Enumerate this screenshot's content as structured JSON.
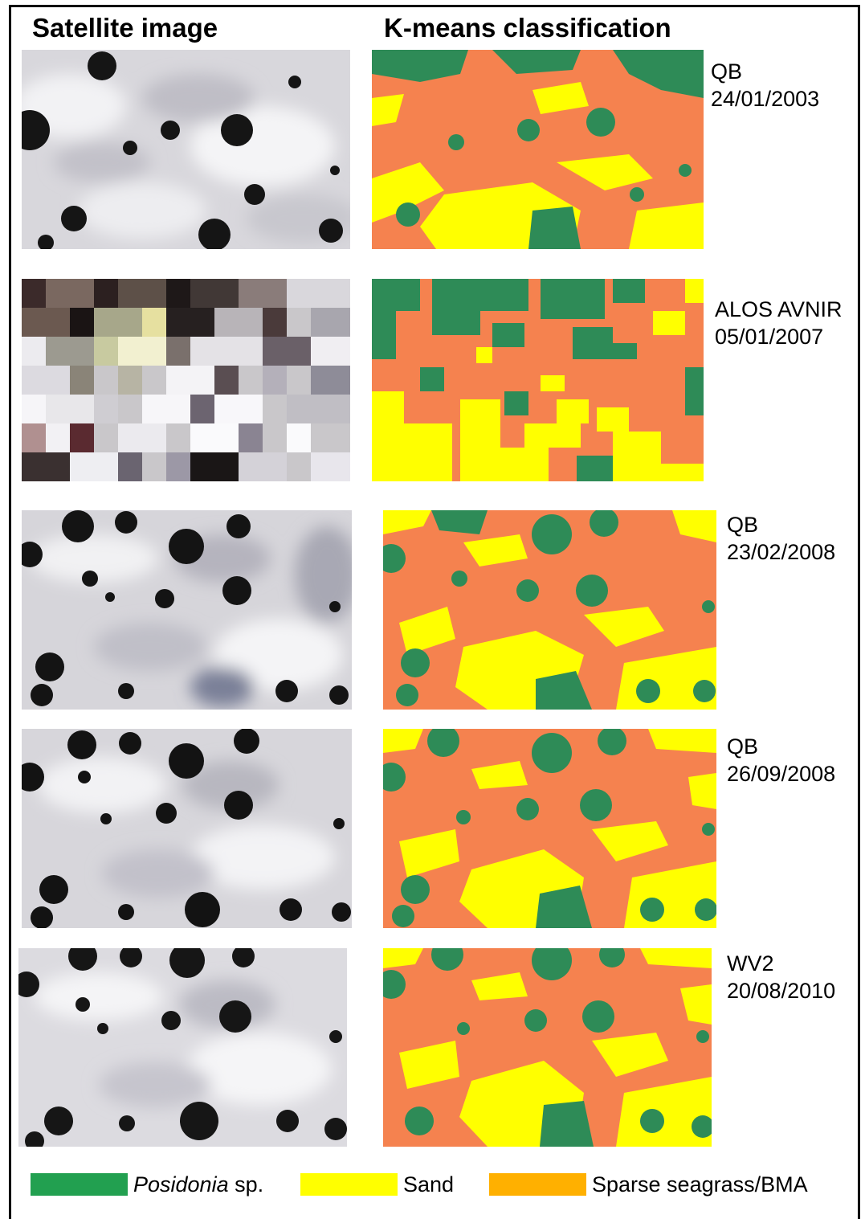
{
  "headers": {
    "satellite": "Satellite image",
    "classification": "K-means classification"
  },
  "rows": [
    {
      "sensor": "QB",
      "date": "24/01/2003"
    },
    {
      "sensor": "ALOS AVNIR",
      "date": "05/01/2007"
    },
    {
      "sensor": "QB",
      "date": "23/02/2008"
    },
    {
      "sensor": "QB",
      "date": "26/09/2008"
    },
    {
      "sensor": "WV2",
      "date": "20/08/2010"
    }
  ],
  "legend": [
    {
      "label_italic": "Posidonia",
      "label_rest": " sp.",
      "color": "#22a050"
    },
    {
      "label_italic": "",
      "label_rest": "Sand",
      "color": "#ffff00"
    },
    {
      "label_italic": "",
      "label_rest": "Sparse seagrass/BMA",
      "color": "#ffb000"
    }
  ],
  "classification_colors": {
    "posidonia": "#2e8b57",
    "sand": "#ffff00",
    "sparse": "#f5824f"
  }
}
